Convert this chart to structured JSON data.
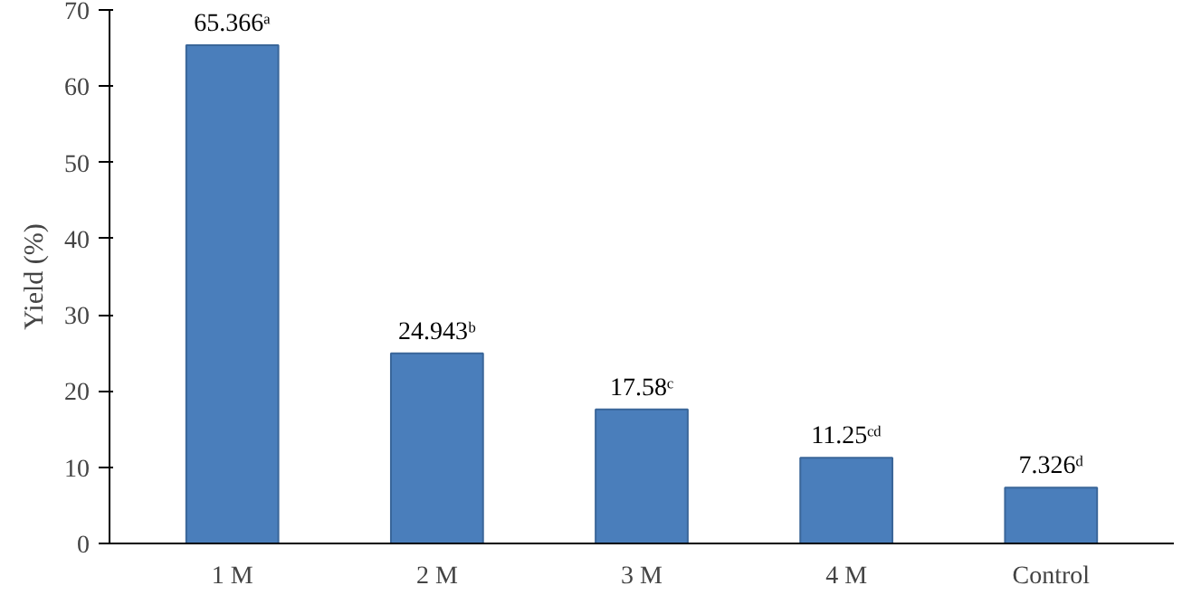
{
  "chart_data": {
    "type": "bar",
    "ylabel": "Yield (%)",
    "categories": [
      "1 M",
      "2 M",
      "3 M",
      "4 M",
      "Control"
    ],
    "values": [
      65.366,
      24.943,
      17.58,
      11.25,
      7.326
    ],
    "value_labels": [
      "65.366ᵃ",
      "24.943ᵇ",
      "17.58ᶜ",
      "11.25ᶜᵈ",
      "7.326ᵈ"
    ],
    "color": "#4a7ebb",
    "ylim": [
      0,
      70
    ],
    "yticks": [
      0,
      10,
      20,
      30,
      40,
      50,
      60,
      70
    ],
    "grid": false
  }
}
